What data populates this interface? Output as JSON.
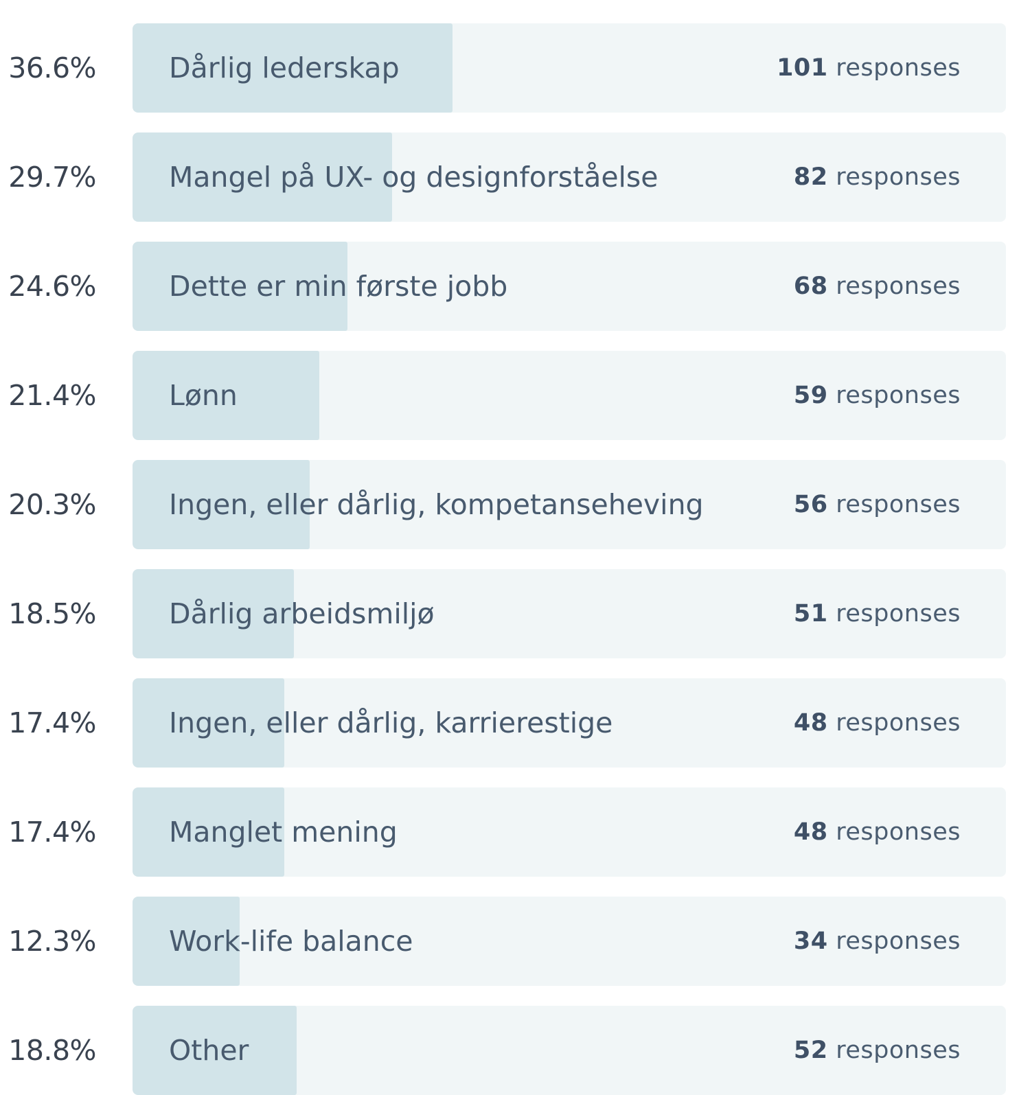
{
  "chart_data": {
    "type": "bar",
    "orientation": "horizontal",
    "categories": [
      "Dårlig lederskap",
      "Mangel på UX- og designforståelse",
      "Dette er min første jobb",
      "Lønn",
      "Ingen, eller dårlig, kompetanseheving",
      "Dårlig arbeidsmiljø",
      "Ingen, eller dårlig, karrierestige",
      "Manglet mening",
      "Work-life balance",
      "Other"
    ],
    "percentages": [
      "36.6%",
      "29.7%",
      "24.6%",
      "21.4%",
      "20.3%",
      "18.5%",
      "17.4%",
      "17.4%",
      "12.3%",
      "18.8%"
    ],
    "values": [
      36.6,
      29.7,
      24.6,
      21.4,
      20.3,
      18.5,
      17.4,
      17.4,
      12.3,
      18.8
    ],
    "counts": [
      101,
      82,
      68,
      59,
      56,
      51,
      48,
      48,
      34,
      52
    ],
    "count_suffix": "responses",
    "xlim": [
      0,
      100
    ],
    "colors": {
      "track": "#f1f6f7",
      "fill": "#d2e4e9",
      "label": "#485a6e",
      "percent": "#3a4350"
    }
  }
}
